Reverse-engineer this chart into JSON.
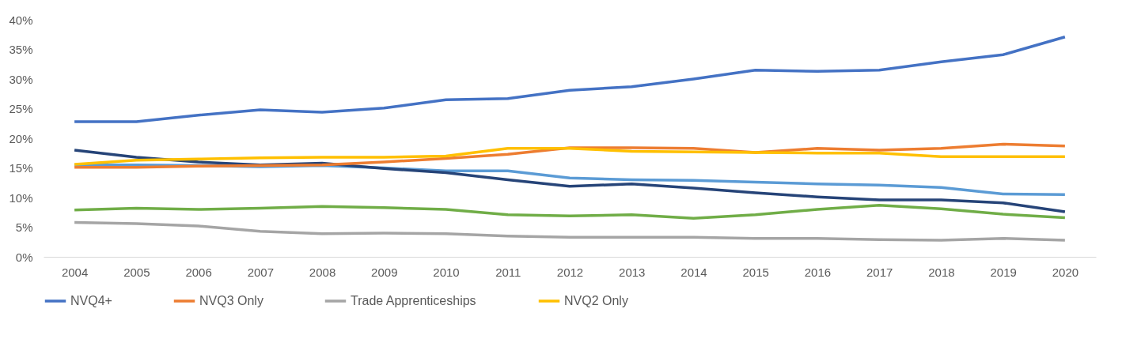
{
  "chart_data": {
    "type": "line",
    "categories": [
      "2004",
      "2005",
      "2006",
      "2007",
      "2008",
      "2009",
      "2010",
      "2011",
      "2012",
      "2013",
      "2014",
      "2015",
      "2016",
      "2017",
      "2018",
      "2019",
      "2020"
    ],
    "ylim": [
      0,
      40
    ],
    "yticks": [
      {
        "value": 0,
        "label": "0%"
      },
      {
        "value": 5,
        "label": "5%"
      },
      {
        "value": 10,
        "label": "10%"
      },
      {
        "value": 15,
        "label": "15%"
      },
      {
        "value": 20,
        "label": "20%"
      },
      {
        "value": 25,
        "label": "25%"
      },
      {
        "value": 30,
        "label": "30%"
      },
      {
        "value": 35,
        "label": "35%"
      },
      {
        "value": 40,
        "label": "40%"
      }
    ],
    "grid": false,
    "legend": "bottom",
    "line_style": "solid",
    "marker": "none",
    "series": [
      {
        "name": "NVQ4+",
        "color": "#4472c4",
        "values": [
          22.8,
          22.8,
          23.9,
          24.8,
          24.4,
          25.1,
          26.5,
          26.7,
          28.1,
          28.7,
          30.0,
          31.5,
          31.3,
          31.5,
          32.9,
          34.1,
          37.1
        ]
      },
      {
        "name": "NVQ3 Only",
        "color": "#ed7d31",
        "values": [
          15.1,
          15.1,
          15.3,
          15.4,
          15.5,
          16.0,
          16.6,
          17.3,
          18.4,
          18.4,
          18.3,
          17.6,
          18.3,
          18.0,
          18.3,
          19.0,
          18.7
        ]
      },
      {
        "name": "Trade Apprenticeships",
        "color": "#a5a5a5",
        "values": [
          5.8,
          5.6,
          5.2,
          4.3,
          3.9,
          4.0,
          3.9,
          3.5,
          3.3,
          3.3,
          3.3,
          3.1,
          3.1,
          2.9,
          2.8,
          3.1,
          2.8
        ]
      },
      {
        "name": "NVQ2 Only",
        "color": "#ffc000",
        "values": [
          15.6,
          16.3,
          16.5,
          16.7,
          16.8,
          16.8,
          17.0,
          18.3,
          18.3,
          17.8,
          17.7,
          17.6,
          17.5,
          17.5,
          16.9,
          16.9,
          16.9
        ]
      },
      {
        "color": "#5b9bd5",
        "values": [
          15.5,
          15.5,
          15.4,
          15.2,
          15.4,
          15.0,
          14.5,
          14.5,
          13.3,
          13.0,
          12.9,
          12.6,
          12.3,
          12.1,
          11.7,
          10.6,
          10.5
        ]
      },
      {
        "color": "#264478",
        "values": [
          18.0,
          16.8,
          16.0,
          15.5,
          15.8,
          14.9,
          14.2,
          13.0,
          11.9,
          12.3,
          11.6,
          10.8,
          10.1,
          9.6,
          9.6,
          9.1,
          7.6
        ]
      },
      {
        "color": "#70ad47",
        "values": [
          7.9,
          8.2,
          8.0,
          8.2,
          8.5,
          8.3,
          8.0,
          7.1,
          6.9,
          7.1,
          6.5,
          7.1,
          8.0,
          8.7,
          8.1,
          7.2,
          6.6
        ]
      }
    ]
  }
}
